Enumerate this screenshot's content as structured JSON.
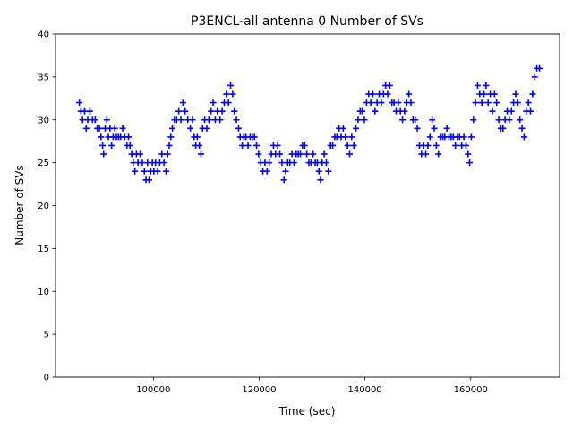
{
  "chart_data": {
    "type": "scatter",
    "title": "P3ENCL-all antenna 0 Number of SVs",
    "xlabel": "Time (sec)",
    "ylabel": "Number of SVs",
    "xlim": [
      81500,
      176800
    ],
    "ylim": [
      0,
      40
    ],
    "xticks": [
      100000,
      120000,
      140000,
      160000
    ],
    "xtick_labels": [
      "100000",
      "120000",
      "140000",
      "160000"
    ],
    "yticks": [
      0,
      5,
      10,
      15,
      20,
      25,
      30,
      35,
      40
    ],
    "ytick_labels": [
      "0",
      "5",
      "10",
      "15",
      "20",
      "25",
      "30",
      "35",
      "40"
    ],
    "grid": false,
    "marker": "+",
    "series": [
      {
        "name": "antenna 0",
        "color": "#0000ff",
        "points": [
          [
            86000,
            32
          ],
          [
            86300,
            31
          ],
          [
            86600,
            30
          ],
          [
            87000,
            31
          ],
          [
            87300,
            29
          ],
          [
            87600,
            30
          ],
          [
            88000,
            31
          ],
          [
            88500,
            30
          ],
          [
            89000,
            30
          ],
          [
            89400,
            29
          ],
          [
            89800,
            29
          ],
          [
            90100,
            28
          ],
          [
            90400,
            27
          ],
          [
            90600,
            26
          ],
          [
            90900,
            29
          ],
          [
            91200,
            30
          ],
          [
            91500,
            28
          ],
          [
            91800,
            29
          ],
          [
            92100,
            27
          ],
          [
            92400,
            28
          ],
          [
            92700,
            29
          ],
          [
            93000,
            28
          ],
          [
            93400,
            28
          ],
          [
            93800,
            28
          ],
          [
            94200,
            29
          ],
          [
            94600,
            28
          ],
          [
            95000,
            27
          ],
          [
            95300,
            28
          ],
          [
            95600,
            27
          ],
          [
            95900,
            26
          ],
          [
            96200,
            25
          ],
          [
            96500,
            24
          ],
          [
            96800,
            26
          ],
          [
            97100,
            25
          ],
          [
            97500,
            26
          ],
          [
            97900,
            25
          ],
          [
            98300,
            24
          ],
          [
            98600,
            23
          ],
          [
            98900,
            25
          ],
          [
            99200,
            23
          ],
          [
            99500,
            24
          ],
          [
            99800,
            25
          ],
          [
            100100,
            24
          ],
          [
            100400,
            25
          ],
          [
            100800,
            24
          ],
          [
            101200,
            25
          ],
          [
            101600,
            26
          ],
          [
            102000,
            25
          ],
          [
            102400,
            24
          ],
          [
            102700,
            26
          ],
          [
            103000,
            27
          ],
          [
            103300,
            28
          ],
          [
            103600,
            29
          ],
          [
            104000,
            30
          ],
          [
            104400,
            30
          ],
          [
            104800,
            31
          ],
          [
            105200,
            30
          ],
          [
            105600,
            32
          ],
          [
            106000,
            31
          ],
          [
            106500,
            30
          ],
          [
            107000,
            29
          ],
          [
            107400,
            30
          ],
          [
            107700,
            28
          ],
          [
            108000,
            27
          ],
          [
            108300,
            28
          ],
          [
            108700,
            27
          ],
          [
            109000,
            26
          ],
          [
            109300,
            29
          ],
          [
            109700,
            30
          ],
          [
            110100,
            29
          ],
          [
            110500,
            30
          ],
          [
            110900,
            31
          ],
          [
            111300,
            32
          ],
          [
            111700,
            30
          ],
          [
            112100,
            31
          ],
          [
            112600,
            30
          ],
          [
            113000,
            31
          ],
          [
            113400,
            32
          ],
          [
            113800,
            33
          ],
          [
            114200,
            32
          ],
          [
            114600,
            34
          ],
          [
            115000,
            33
          ],
          [
            115300,
            31
          ],
          [
            115700,
            30
          ],
          [
            116100,
            29
          ],
          [
            116400,
            28
          ],
          [
            116800,
            27
          ],
          [
            117100,
            28
          ],
          [
            117500,
            28
          ],
          [
            117900,
            27
          ],
          [
            118300,
            28
          ],
          [
            118700,
            28
          ],
          [
            119100,
            28
          ],
          [
            119500,
            27
          ],
          [
            119900,
            26
          ],
          [
            120300,
            25
          ],
          [
            120700,
            24
          ],
          [
            121100,
            25
          ],
          [
            121500,
            24
          ],
          [
            121900,
            25
          ],
          [
            122300,
            26
          ],
          [
            122700,
            27
          ],
          [
            123100,
            26
          ],
          [
            123500,
            27
          ],
          [
            123900,
            26
          ],
          [
            124300,
            25
          ],
          [
            124700,
            23
          ],
          [
            125000,
            24
          ],
          [
            125400,
            25
          ],
          [
            125800,
            25
          ],
          [
            126200,
            26
          ],
          [
            126600,
            25
          ],
          [
            127000,
            26
          ],
          [
            127400,
            26
          ],
          [
            127800,
            26
          ],
          [
            128200,
            27
          ],
          [
            128600,
            27
          ],
          [
            129000,
            26
          ],
          [
            129400,
            25
          ],
          [
            129800,
            25
          ],
          [
            130200,
            26
          ],
          [
            130600,
            25
          ],
          [
            131000,
            25
          ],
          [
            131300,
            24
          ],
          [
            131600,
            23
          ],
          [
            131900,
            25
          ],
          [
            132300,
            26
          ],
          [
            132700,
            25
          ],
          [
            133100,
            24
          ],
          [
            133500,
            27
          ],
          [
            133900,
            27
          ],
          [
            134300,
            28
          ],
          [
            134700,
            28
          ],
          [
            135100,
            29
          ],
          [
            135500,
            28
          ],
          [
            135900,
            29
          ],
          [
            136300,
            28
          ],
          [
            136700,
            27
          ],
          [
            137100,
            26
          ],
          [
            137500,
            28
          ],
          [
            137900,
            27
          ],
          [
            138300,
            29
          ],
          [
            138700,
            30
          ],
          [
            139100,
            31
          ],
          [
            139500,
            31
          ],
          [
            139900,
            30
          ],
          [
            140300,
            32
          ],
          [
            140700,
            33
          ],
          [
            141100,
            32
          ],
          [
            141500,
            33
          ],
          [
            141900,
            31
          ],
          [
            142300,
            32
          ],
          [
            142700,
            33
          ],
          [
            143100,
            32
          ],
          [
            143500,
            33
          ],
          [
            143900,
            34
          ],
          [
            144300,
            33
          ],
          [
            144700,
            34
          ],
          [
            145100,
            32
          ],
          [
            145500,
            32
          ],
          [
            145900,
            31
          ],
          [
            146300,
            32
          ],
          [
            146700,
            31
          ],
          [
            147100,
            30
          ],
          [
            147500,
            31
          ],
          [
            147900,
            32
          ],
          [
            148300,
            33
          ],
          [
            148700,
            32
          ],
          [
            149100,
            30
          ],
          [
            149500,
            30
          ],
          [
            149900,
            29
          ],
          [
            150300,
            27
          ],
          [
            150700,
            26
          ],
          [
            151100,
            27
          ],
          [
            151500,
            26
          ],
          [
            151900,
            27
          ],
          [
            152300,
            28
          ],
          [
            152700,
            30
          ],
          [
            153100,
            29
          ],
          [
            153500,
            27
          ],
          [
            153900,
            26
          ],
          [
            154300,
            28
          ],
          [
            154700,
            28
          ],
          [
            155100,
            28
          ],
          [
            155500,
            29
          ],
          [
            155900,
            28
          ],
          [
            156300,
            28
          ],
          [
            156700,
            28
          ],
          [
            157100,
            27
          ],
          [
            157500,
            28
          ],
          [
            157900,
            28
          ],
          [
            158300,
            27
          ],
          [
            158700,
            28
          ],
          [
            159100,
            27
          ],
          [
            159500,
            26
          ],
          [
            159800,
            25
          ],
          [
            160100,
            28
          ],
          [
            160500,
            30
          ],
          [
            160900,
            32
          ],
          [
            161300,
            34
          ],
          [
            161700,
            33
          ],
          [
            162100,
            32
          ],
          [
            162500,
            33
          ],
          [
            162900,
            34
          ],
          [
            163300,
            32
          ],
          [
            163700,
            33
          ],
          [
            164100,
            31
          ],
          [
            164500,
            33
          ],
          [
            164900,
            32
          ],
          [
            165300,
            30
          ],
          [
            165700,
            29
          ],
          [
            166100,
            29
          ],
          [
            166500,
            30
          ],
          [
            166900,
            31
          ],
          [
            167300,
            30
          ],
          [
            167700,
            31
          ],
          [
            168100,
            32
          ],
          [
            168500,
            33
          ],
          [
            168900,
            32
          ],
          [
            169300,
            30
          ],
          [
            169700,
            29
          ],
          [
            170100,
            28
          ],
          [
            170500,
            31
          ],
          [
            170900,
            32
          ],
          [
            171300,
            31
          ],
          [
            171700,
            33
          ],
          [
            172100,
            35
          ],
          [
            172500,
            36
          ],
          [
            173000,
            36
          ]
        ]
      }
    ]
  }
}
